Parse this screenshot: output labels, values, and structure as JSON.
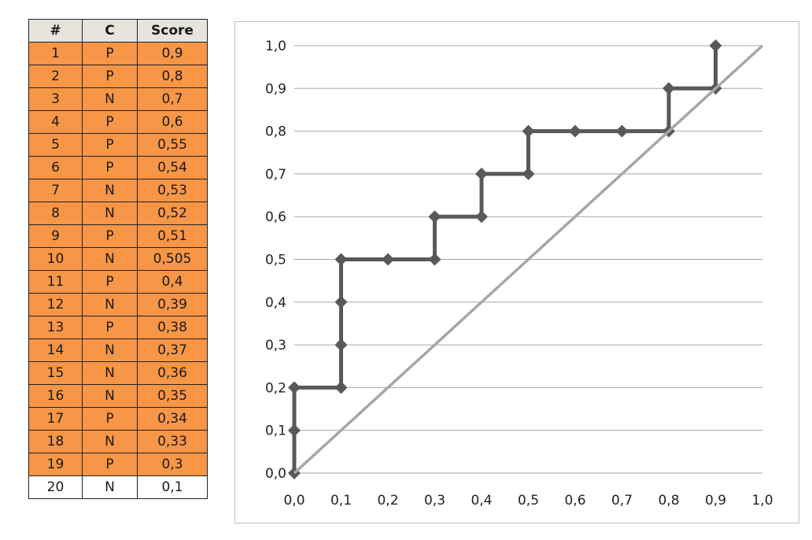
{
  "table": {
    "headers": [
      "#",
      "C",
      "Score"
    ],
    "rows": [
      [
        "1",
        "P",
        "0,9"
      ],
      [
        "2",
        "P",
        "0,8"
      ],
      [
        "3",
        "N",
        "0,7"
      ],
      [
        "4",
        "P",
        "0,6"
      ],
      [
        "5",
        "P",
        "0,55"
      ],
      [
        "6",
        "P",
        "0,54"
      ],
      [
        "7",
        "N",
        "0,53"
      ],
      [
        "8",
        "N",
        "0,52"
      ],
      [
        "9",
        "P",
        "0,51"
      ],
      [
        "10",
        "N",
        "0,505"
      ],
      [
        "11",
        "P",
        "0,4"
      ],
      [
        "12",
        "N",
        "0,39"
      ],
      [
        "13",
        "P",
        "0,38"
      ],
      [
        "14",
        "N",
        "0,37"
      ],
      [
        "15",
        "N",
        "0,36"
      ],
      [
        "16",
        "N",
        "0,35"
      ],
      [
        "17",
        "P",
        "0,34"
      ],
      [
        "18",
        "N",
        "0,33"
      ],
      [
        "19",
        "P",
        "0,3"
      ],
      [
        "20",
        "N",
        "0,1"
      ]
    ],
    "highlight_color": "#f79646",
    "header_color": "#e6e4dc"
  },
  "chart_data": {
    "type": "line",
    "xlim": [
      0,
      1
    ],
    "ylim": [
      0,
      1
    ],
    "x_ticks": [
      "0,0",
      "0,1",
      "0,2",
      "0,3",
      "0,4",
      "0,5",
      "0,6",
      "0,7",
      "0,8",
      "0,9",
      "1,0"
    ],
    "y_ticks": [
      "0,0",
      "0,1",
      "0,2",
      "0,3",
      "0,4",
      "0,5",
      "0,6",
      "0,7",
      "0,8",
      "0,9",
      "1,0"
    ],
    "grid": "horizontal",
    "legend": "none",
    "series": [
      {
        "color": "#595959",
        "marker": "diamond",
        "x": [
          0,
          0,
          0,
          0.1,
          0.1,
          0.1,
          0.1,
          0.2,
          0.3,
          0.3,
          0.4,
          0.4,
          0.5,
          0.5,
          0.6,
          0.7,
          0.8,
          0.8,
          0.9,
          0.9
        ],
        "y": [
          0,
          0.1,
          0.2,
          0.2,
          0.3,
          0.4,
          0.5,
          0.5,
          0.5,
          0.6,
          0.6,
          0.7,
          0.7,
          0.8,
          0.8,
          0.8,
          0.8,
          0.9,
          0.9,
          1.0
        ]
      },
      {
        "color": "#a6a6a6",
        "marker": "none",
        "x": [
          0,
          1
        ],
        "y": [
          0,
          1
        ]
      }
    ]
  }
}
